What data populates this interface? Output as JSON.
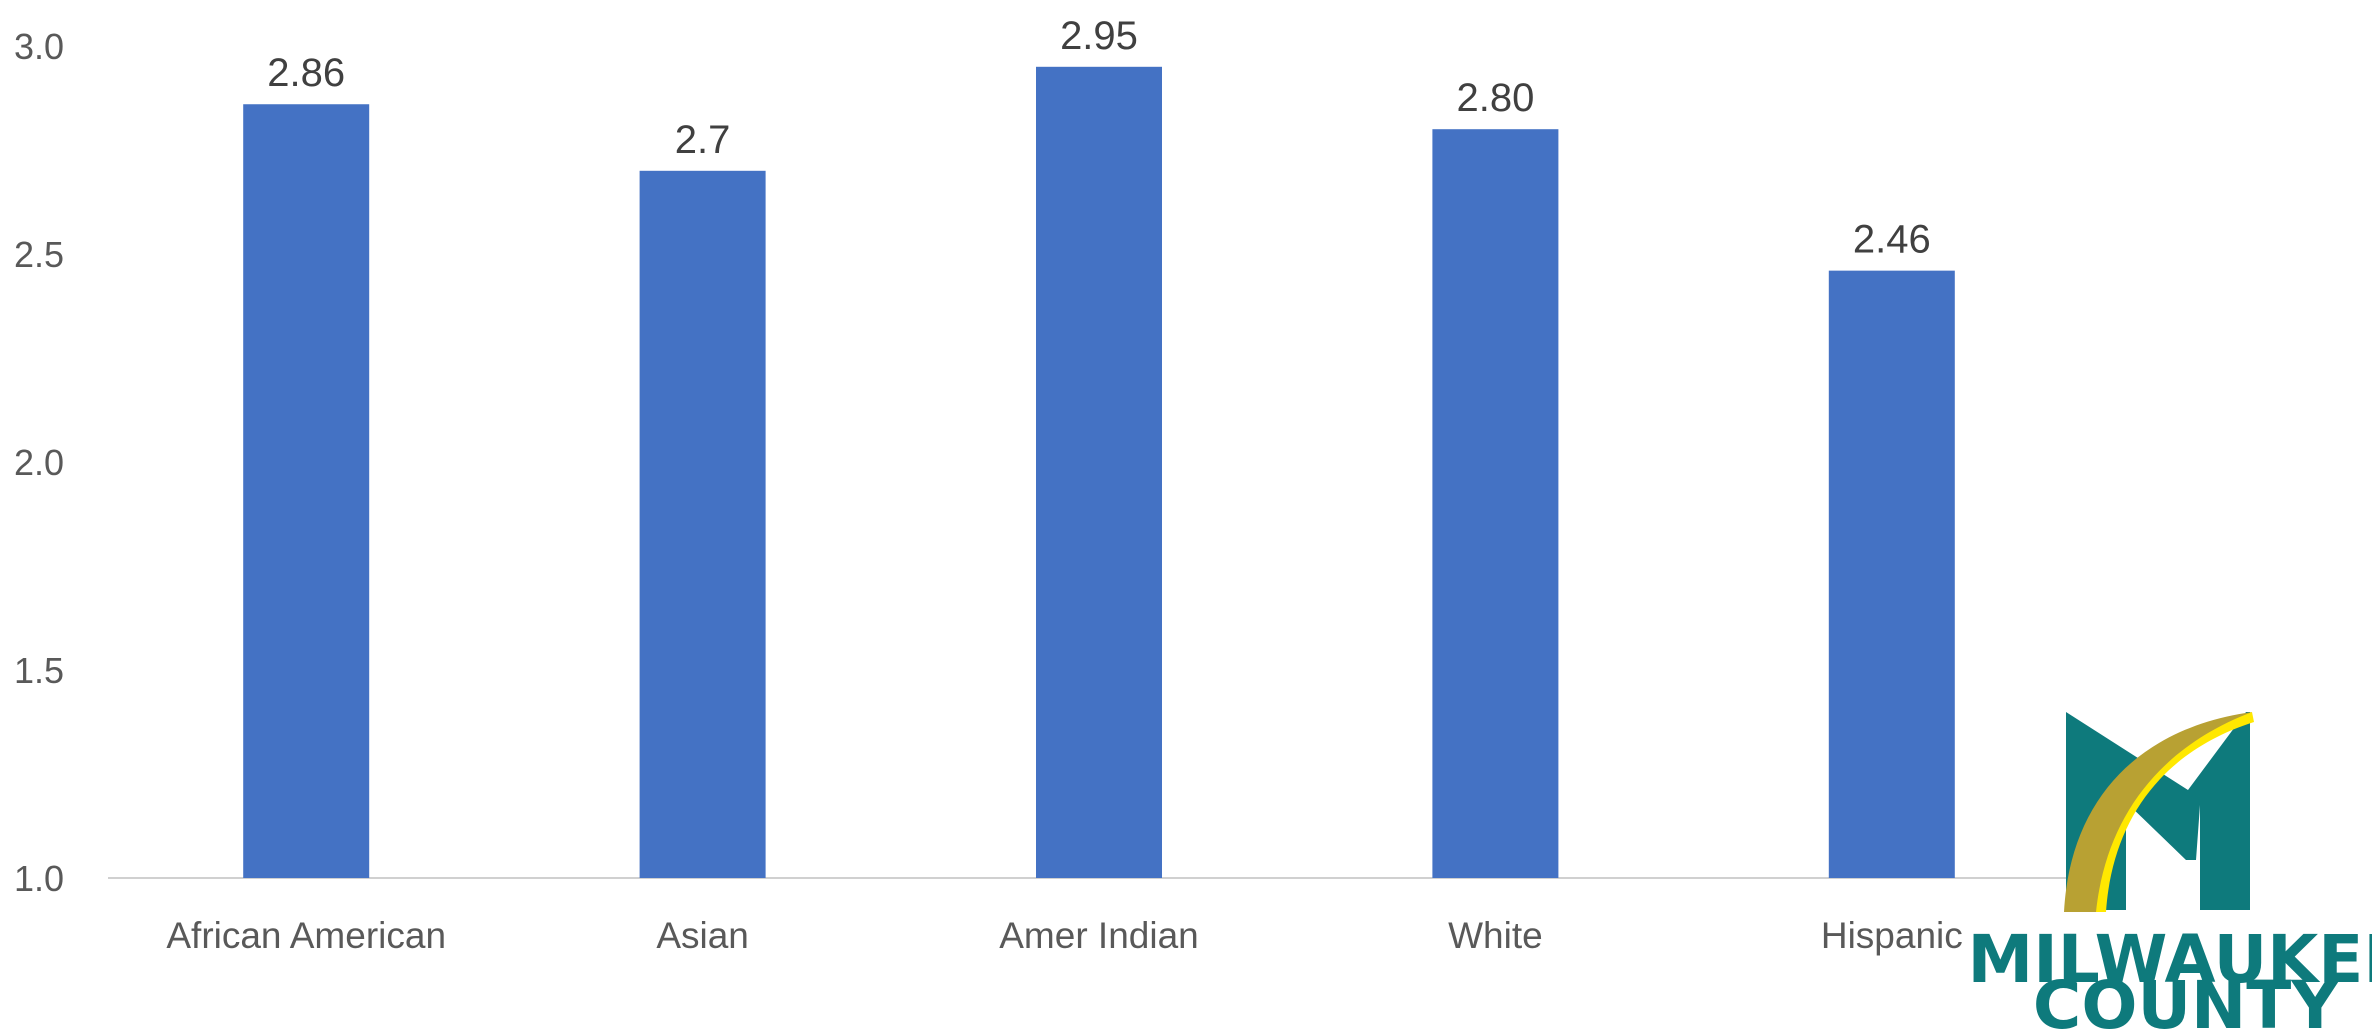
{
  "chart_data": {
    "type": "bar",
    "categories": [
      "African American",
      "Asian",
      "Amer Indian",
      "White",
      "Hispanic"
    ],
    "values": [
      2.86,
      2.7,
      2.95,
      2.8,
      2.46
    ],
    "data_labels": [
      "2.86",
      "2.7",
      "2.95",
      "2.80",
      "2.46"
    ],
    "y_ticks": [
      "1.0",
      "1.5",
      "2.0",
      "2.5",
      "3.0"
    ],
    "ylim": [
      1.0,
      3.0
    ],
    "title": "",
    "xlabel": "",
    "ylabel": "",
    "grid": false,
    "legend": "none",
    "bar_color": "#4472C4"
  },
  "logo": {
    "line1": "MILWAUKEE",
    "line2": "COUNTY",
    "teal_color": "#0E7A7C",
    "gold_color": "#B8A133",
    "yellow_color": "#FFE800"
  }
}
